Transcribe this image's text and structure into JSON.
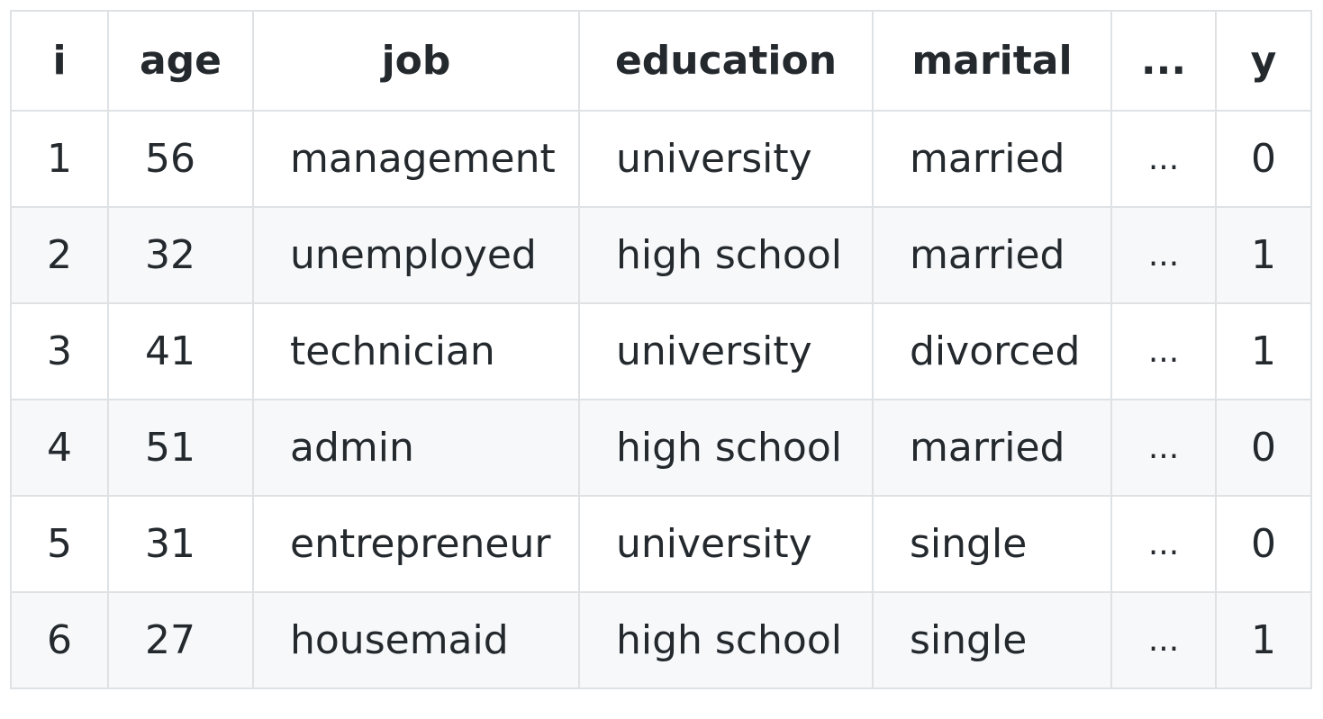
{
  "table": {
    "headers": [
      "i",
      "age",
      "job",
      "education",
      "marital",
      "...",
      "y"
    ],
    "rows": [
      [
        "1",
        "56",
        "management",
        "university",
        "married",
        "...",
        "0"
      ],
      [
        "2",
        "32",
        "unemployed",
        "high school",
        "married",
        "...",
        "1"
      ],
      [
        "3",
        "41",
        "technician",
        "university",
        "divorced",
        "...",
        "1"
      ],
      [
        "4",
        "51",
        "admin",
        "high school",
        "married",
        "...",
        "0"
      ],
      [
        "5",
        "31",
        "entrepreneur",
        "university",
        "single",
        "...",
        "0"
      ],
      [
        "6",
        "27",
        "housemaid",
        "high school",
        "single",
        "...",
        "1"
      ]
    ]
  },
  "colors": {
    "text": "#24292e",
    "border": "#dfe2e5",
    "alt_row_bg": "#f6f8fa"
  }
}
